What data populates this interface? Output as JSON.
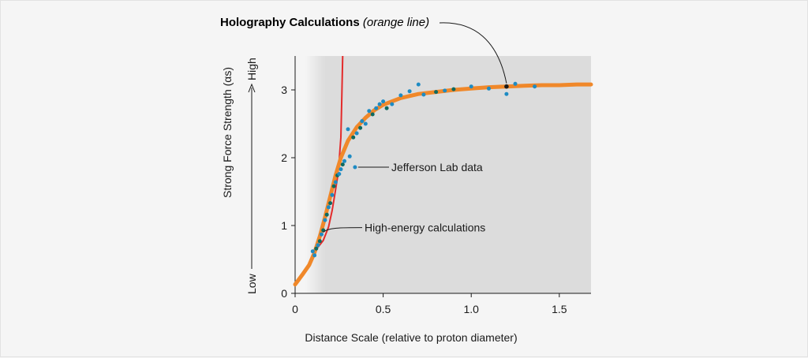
{
  "chart_data": {
    "type": "scatter",
    "title": {
      "bold": "Holography Calculations",
      "paren_open": " (",
      "italic": "orange line",
      "paren_close": ")"
    },
    "xlabel": "Distance Scale (relative to proton diameter)",
    "ylabel": "Strong Force Strength (αs)",
    "ylabel_low": "Low",
    "ylabel_high": "High",
    "xlim": [
      0,
      1.68
    ],
    "ylim": [
      0,
      3.5
    ],
    "xticks": [
      {
        "value": 0,
        "label": "0"
      },
      {
        "value": 0.5,
        "label": "0.5"
      },
      {
        "value": 1.0,
        "label": "1.0"
      },
      {
        "value": 1.5,
        "label": "1.5"
      }
    ],
    "yticks": [
      {
        "value": 0,
        "label": "0"
      },
      {
        "value": 1,
        "label": "1"
      },
      {
        "value": 2,
        "label": "2"
      },
      {
        "value": 3,
        "label": "3"
      }
    ],
    "shaded_region_from_x": 0.17,
    "annotations": {
      "jefferson": "Jefferson Lab data",
      "high_energy": "High-energy calculations"
    },
    "colors": {
      "holography": "#f0882a",
      "high_energy": "#e32b2b",
      "data_blue": "#1e8bc3",
      "data_teal": "#0e6a60",
      "shade": "#dcdcdc"
    },
    "series": [
      {
        "name": "Holography Calculations",
        "kind": "curve",
        "x": [
          0.0,
          0.04,
          0.08,
          0.11,
          0.14,
          0.17,
          0.2,
          0.23,
          0.26,
          0.3,
          0.35,
          0.4,
          0.45,
          0.5,
          0.6,
          0.7,
          0.8,
          0.9,
          1.0,
          1.1,
          1.2,
          1.3,
          1.4,
          1.5,
          1.6,
          1.68
        ],
        "y": [
          0.13,
          0.27,
          0.42,
          0.6,
          0.84,
          1.12,
          1.43,
          1.74,
          2.0,
          2.25,
          2.45,
          2.59,
          2.7,
          2.78,
          2.88,
          2.94,
          2.97,
          3.0,
          3.02,
          3.04,
          3.05,
          3.06,
          3.07,
          3.07,
          3.08,
          3.08
        ]
      },
      {
        "name": "High-energy calculations",
        "kind": "curve",
        "x": [
          0.1,
          0.13,
          0.16,
          0.19,
          0.21,
          0.225,
          0.24,
          0.25,
          0.26,
          0.265,
          0.27
        ],
        "y": [
          0.62,
          0.68,
          0.78,
          0.98,
          1.22,
          1.45,
          1.7,
          1.95,
          2.3,
          2.9,
          3.5
        ]
      },
      {
        "name": "Jefferson Lab data",
        "kind": "points",
        "points": [
          [
            0.1,
            0.62,
            "blue"
          ],
          [
            0.11,
            0.56,
            "blue"
          ],
          [
            0.12,
            0.66,
            "teal"
          ],
          [
            0.13,
            0.71,
            "blue"
          ],
          [
            0.14,
            0.77,
            "teal"
          ],
          [
            0.15,
            0.87,
            "blue"
          ],
          [
            0.16,
            0.93,
            "teal"
          ],
          [
            0.17,
            1.08,
            "blue"
          ],
          [
            0.18,
            1.16,
            "teal"
          ],
          [
            0.19,
            1.27,
            "blue"
          ],
          [
            0.2,
            1.33,
            "teal"
          ],
          [
            0.21,
            1.45,
            "blue"
          ],
          [
            0.22,
            1.58,
            "teal"
          ],
          [
            0.23,
            1.64,
            "blue"
          ],
          [
            0.24,
            1.74,
            "teal"
          ],
          [
            0.25,
            1.76,
            "blue"
          ],
          [
            0.26,
            1.83,
            "blue"
          ],
          [
            0.27,
            1.9,
            "teal"
          ],
          [
            0.28,
            1.95,
            "blue"
          ],
          [
            0.3,
            2.42,
            "blue"
          ],
          [
            0.31,
            2.02,
            "blue"
          ],
          [
            0.33,
            2.3,
            "teal"
          ],
          [
            0.34,
            1.86,
            "blue"
          ],
          [
            0.35,
            2.36,
            "blue"
          ],
          [
            0.37,
            2.44,
            "teal"
          ],
          [
            0.38,
            2.54,
            "blue"
          ],
          [
            0.4,
            2.5,
            "blue"
          ],
          [
            0.42,
            2.69,
            "blue"
          ],
          [
            0.44,
            2.64,
            "teal"
          ],
          [
            0.46,
            2.73,
            "blue"
          ],
          [
            0.48,
            2.79,
            "blue"
          ],
          [
            0.5,
            2.83,
            "blue"
          ],
          [
            0.52,
            2.73,
            "teal"
          ],
          [
            0.55,
            2.79,
            "blue"
          ],
          [
            0.6,
            2.92,
            "blue"
          ],
          [
            0.65,
            2.98,
            "blue"
          ],
          [
            0.7,
            3.08,
            "blue"
          ],
          [
            0.73,
            2.93,
            "blue"
          ],
          [
            0.8,
            2.97,
            "teal"
          ],
          [
            0.85,
            2.99,
            "blue"
          ],
          [
            0.9,
            3.01,
            "teal"
          ],
          [
            1.0,
            3.05,
            "blue"
          ],
          [
            1.1,
            3.02,
            "blue"
          ],
          [
            1.2,
            2.94,
            "blue"
          ],
          [
            1.25,
            3.09,
            "blue"
          ],
          [
            1.36,
            3.05,
            "blue"
          ]
        ]
      }
    ]
  }
}
